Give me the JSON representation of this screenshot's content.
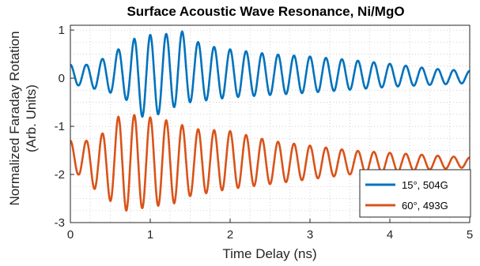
{
  "chart_data": {
    "type": "line",
    "title": "Surface Acoustic Wave Resonance, Ni/MgO",
    "xlabel": "Time Delay (ns)",
    "ylabel_lines": [
      "Normalized Faraday Rotation",
      "(Arb. Units)"
    ],
    "xlim": [
      0,
      5
    ],
    "ylim": [
      -3,
      1.1
    ],
    "xticks": [
      0,
      1,
      2,
      3,
      4,
      5
    ],
    "yticks": [
      -3,
      -2,
      -1,
      0,
      1
    ],
    "grid": "dotted",
    "legend_position": "lower-right",
    "series": [
      {
        "name": "15°, 504G",
        "color": "#0072BD",
        "offset": 0.0,
        "period_ns": 0.2,
        "peaks": [
          {
            "x": 0.2,
            "y": 0.28
          },
          {
            "x": 0.4,
            "y": 0.4
          },
          {
            "x": 0.6,
            "y": 0.6
          },
          {
            "x": 0.8,
            "y": 0.82
          },
          {
            "x": 1.0,
            "y": 0.9
          },
          {
            "x": 1.2,
            "y": 0.92
          },
          {
            "x": 1.4,
            "y": 0.97
          },
          {
            "x": 1.6,
            "y": 0.75
          },
          {
            "x": 1.8,
            "y": 0.65
          },
          {
            "x": 2.0,
            "y": 0.6
          },
          {
            "x": 2.5,
            "y": 0.5
          },
          {
            "x": 3.0,
            "y": 0.45
          },
          {
            "x": 3.5,
            "y": 0.38
          },
          {
            "x": 4.0,
            "y": 0.3
          },
          {
            "x": 4.5,
            "y": 0.2
          },
          {
            "x": 5.0,
            "y": 0.15
          }
        ],
        "troughs": [
          {
            "x": 0.1,
            "y": -0.15
          },
          {
            "x": 0.3,
            "y": -0.22
          },
          {
            "x": 0.5,
            "y": -0.3
          },
          {
            "x": 0.7,
            "y": -0.45
          },
          {
            "x": 0.9,
            "y": -0.8
          },
          {
            "x": 1.1,
            "y": -0.75
          },
          {
            "x": 1.3,
            "y": -0.6
          },
          {
            "x": 1.5,
            "y": -0.5
          },
          {
            "x": 2.0,
            "y": -0.4
          },
          {
            "x": 2.5,
            "y": -0.35
          },
          {
            "x": 3.0,
            "y": -0.3
          },
          {
            "x": 4.0,
            "y": -0.18
          },
          {
            "x": 5.0,
            "y": -0.1
          }
        ]
      },
      {
        "name": "60°, 493G",
        "color": "#D95319",
        "offset": -1.75,
        "period_ns": 0.2,
        "peaks": [
          {
            "x": 0.2,
            "y": -1.3
          },
          {
            "x": 0.4,
            "y": -1.15
          },
          {
            "x": 0.6,
            "y": -0.8
          },
          {
            "x": 0.7,
            "y": -0.75
          },
          {
            "x": 0.9,
            "y": -0.78
          },
          {
            "x": 1.1,
            "y": -0.85
          },
          {
            "x": 1.3,
            "y": -0.9
          },
          {
            "x": 1.5,
            "y": -1.05
          },
          {
            "x": 2.0,
            "y": -1.1
          },
          {
            "x": 2.5,
            "y": -1.3
          },
          {
            "x": 3.0,
            "y": -1.4
          },
          {
            "x": 3.5,
            "y": -1.5
          },
          {
            "x": 4.0,
            "y": -1.55
          },
          {
            "x": 4.5,
            "y": -1.6
          },
          {
            "x": 5.0,
            "y": -1.65
          }
        ],
        "troughs": [
          {
            "x": 0.1,
            "y": -2.0
          },
          {
            "x": 0.3,
            "y": -2.3
          },
          {
            "x": 0.5,
            "y": -2.55
          },
          {
            "x": 0.7,
            "y": -2.75
          },
          {
            "x": 0.9,
            "y": -2.7
          },
          {
            "x": 1.1,
            "y": -2.65
          },
          {
            "x": 1.3,
            "y": -2.6
          },
          {
            "x": 1.5,
            "y": -2.45
          },
          {
            "x": 2.0,
            "y": -2.3
          },
          {
            "x": 2.5,
            "y": -2.2
          },
          {
            "x": 3.0,
            "y": -2.1
          },
          {
            "x": 3.5,
            "y": -2.0
          },
          {
            "x": 4.0,
            "y": -1.95
          },
          {
            "x": 4.5,
            "y": -1.9
          },
          {
            "x": 5.0,
            "y": -1.85
          }
        ]
      }
    ]
  }
}
